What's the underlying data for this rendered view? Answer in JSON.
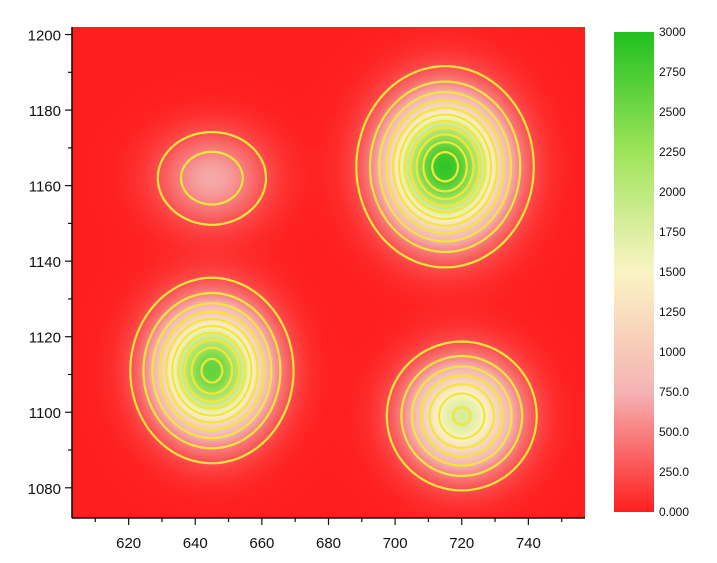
{
  "chart_data": {
    "type": "heatmap",
    "title": "",
    "xlabel": "",
    "ylabel": "",
    "xlim": [
      603,
      757
    ],
    "ylim": [
      1072,
      1202
    ],
    "x_ticks": [
      620,
      640,
      660,
      680,
      700,
      720,
      740
    ],
    "y_ticks": [
      1080,
      1100,
      1120,
      1140,
      1160,
      1180,
      1200
    ],
    "x_tick_labels": [
      "620",
      "640",
      "660",
      "680",
      "700",
      "720",
      "740"
    ],
    "y_tick_labels": [
      "1080",
      "1100",
      "1120",
      "1140",
      "1160",
      "1180",
      "1200"
    ],
    "peaks": [
      {
        "x": 715,
        "y": 1165,
        "value": 2900,
        "sx": 17,
        "sy": 17
      },
      {
        "x": 645,
        "y": 1111,
        "value": 2600,
        "sx": 16,
        "sy": 16
      },
      {
        "x": 720,
        "y": 1099,
        "value": 1800,
        "sx": 16,
        "sy": 14
      },
      {
        "x": 645,
        "y": 1162,
        "value": 700,
        "sx": 16,
        "sy": 12
      }
    ],
    "baseline": 0,
    "contour_levels": [
      250,
      500,
      750,
      1000,
      1250,
      1500,
      1750,
      2000,
      2250,
      2500,
      2750
    ],
    "contour_color": "#f2e63a",
    "colorbar": {
      "min": 0,
      "max": 3000,
      "tick_values": [
        0,
        250,
        500,
        750,
        1000,
        1250,
        1500,
        1750,
        2000,
        2250,
        2500,
        2750,
        3000
      ],
      "tick_labels": [
        "0.000",
        "250.0",
        "500.0",
        "750.0",
        "1000",
        "1250",
        "1500",
        "1750",
        "2000",
        "2250",
        "2500",
        "2750",
        "3000"
      ],
      "placement": "right"
    },
    "colormap": [
      {
        "value": 0,
        "color": "#ff1e1e"
      },
      {
        "value": 750,
        "color": "#f5b3b3"
      },
      {
        "value": 1500,
        "color": "#fbf4c4"
      },
      {
        "value": 2250,
        "color": "#9ee45a"
      },
      {
        "value": 3000,
        "color": "#1fc01f"
      }
    ],
    "grid": false
  }
}
